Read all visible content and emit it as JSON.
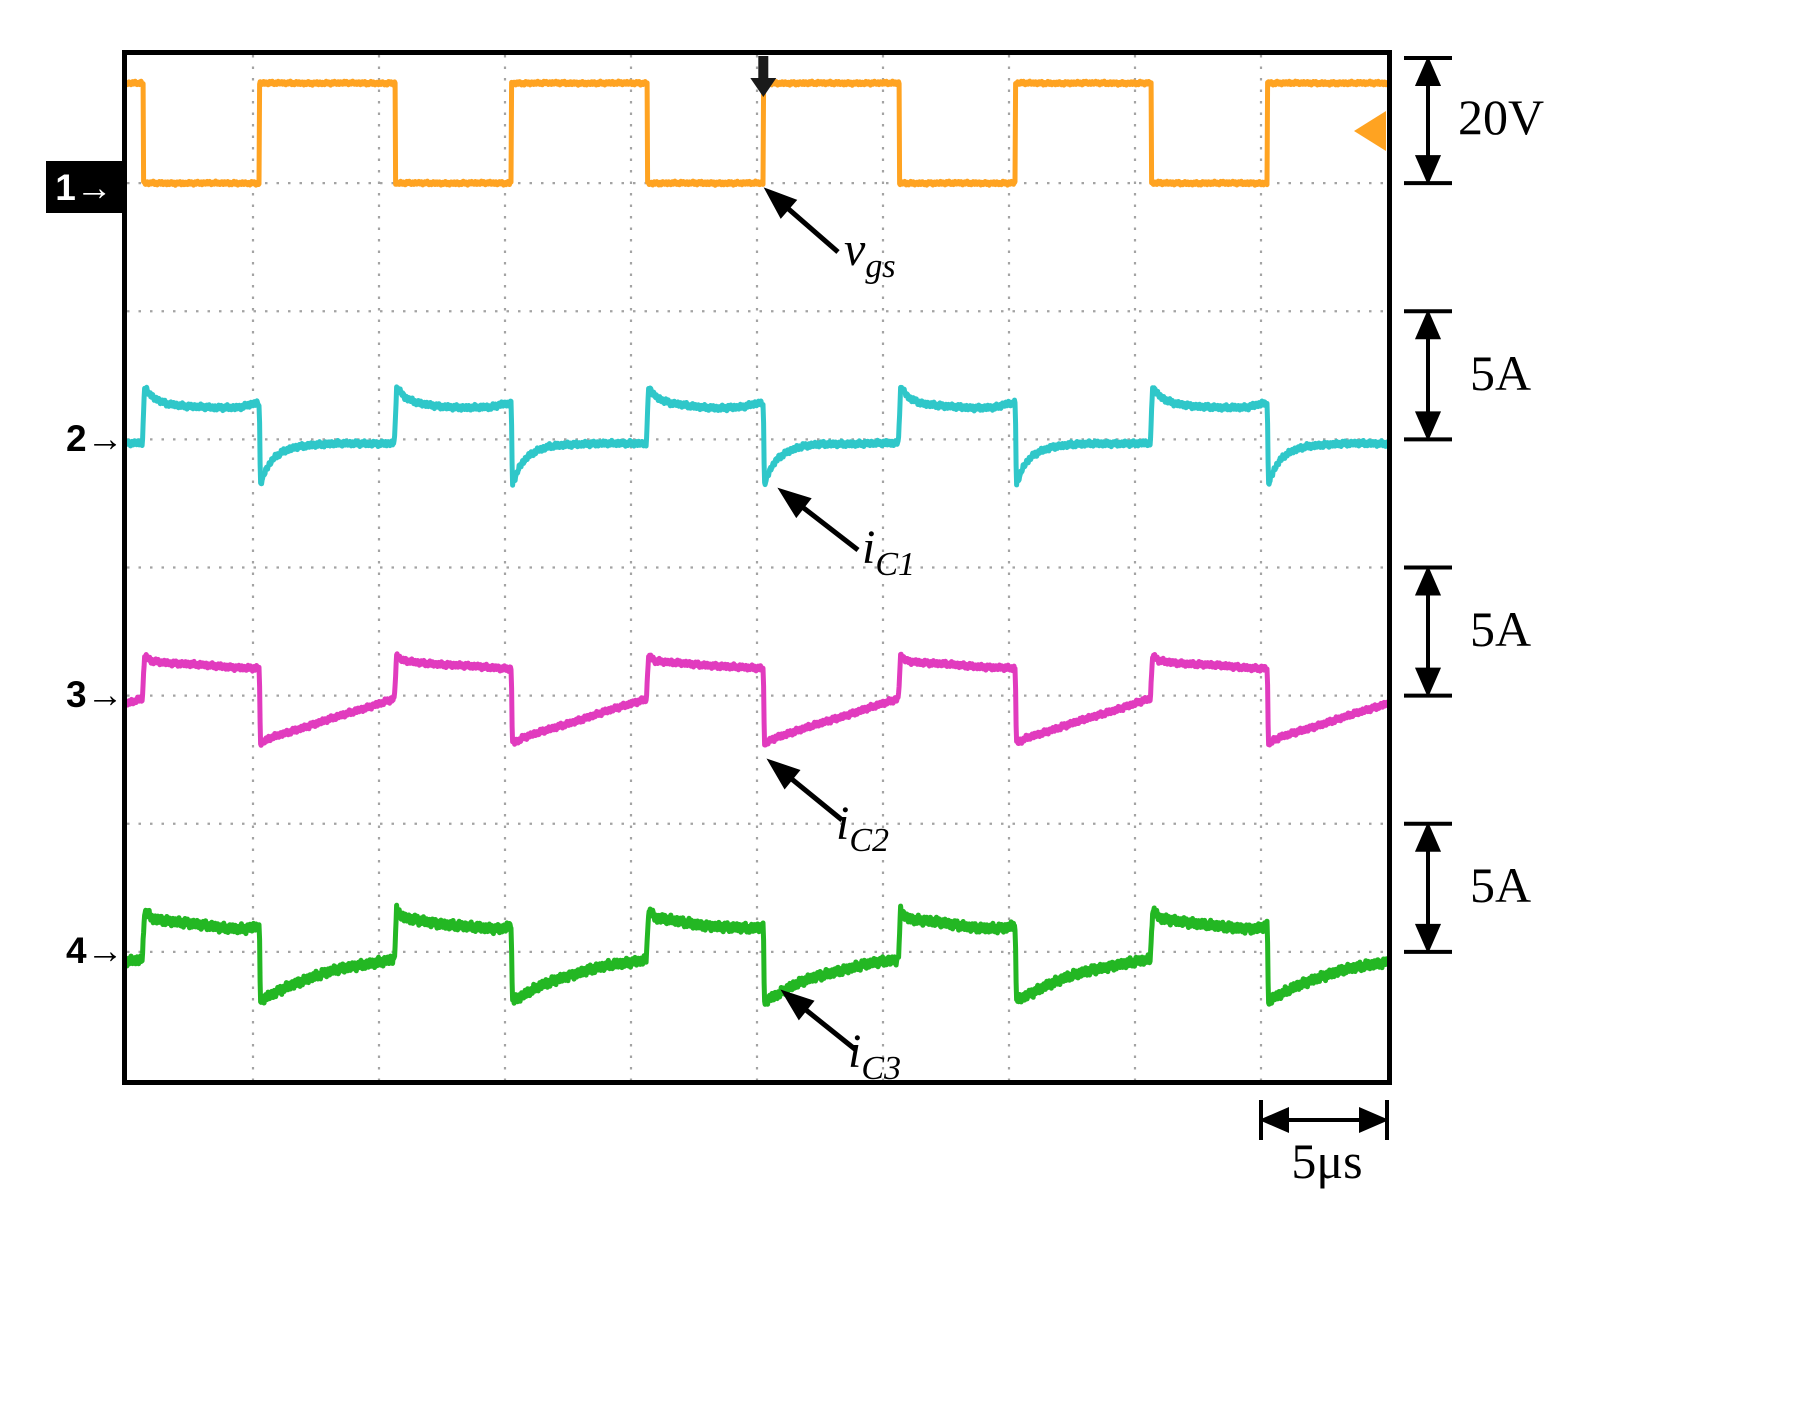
{
  "figure": {
    "channel_markers": [
      {
        "id": 1,
        "text": "1→"
      },
      {
        "id": 2,
        "text": "2→"
      },
      {
        "id": 3,
        "text": "3→"
      },
      {
        "id": 4,
        "text": "4→"
      }
    ],
    "scale_indicators": [
      {
        "label": "20V"
      },
      {
        "label": "5A"
      },
      {
        "label": "5A"
      },
      {
        "label": "5A"
      }
    ],
    "time_scale": {
      "label": "5μs"
    },
    "annotations": [
      {
        "base": "v",
        "sub": "gs"
      },
      {
        "base": "i",
        "sub": "C1"
      },
      {
        "base": "i",
        "sub": "C2"
      },
      {
        "base": "i",
        "sub": "C3"
      }
    ]
  },
  "chart_data": {
    "type": "line",
    "title": "",
    "x_axis": {
      "unit": "μs",
      "time_per_div": 5,
      "divisions": 10,
      "range": [
        0,
        50
      ]
    },
    "y_axis": {
      "divisions": 8
    },
    "grid": true,
    "switching_period_us": 10,
    "gate_rising_edge_phase_us": 5.25,
    "gate_duty_high": 0.54,
    "trigger_time_us": 25.25,
    "series": [
      {
        "name": "v_gs",
        "channel": 1,
        "color": "#FFA321",
        "per_arrow_scale": "20V",
        "unit": "V",
        "high": 20,
        "low": 0,
        "period_points": [
          [
            0,
            0
          ],
          [
            0,
            20
          ],
          [
            5.4,
            20
          ],
          [
            5.4,
            0
          ],
          [
            10,
            0
          ]
        ]
      },
      {
        "name": "i_C1",
        "channel": 2,
        "color": "#2FC7C9",
        "per_arrow_scale": "5A",
        "unit": "A",
        "period_points": [
          [
            0,
            1.4
          ],
          [
            0.04,
            -1.75
          ],
          [
            0.3,
            -1.1
          ],
          [
            0.6,
            -0.7
          ],
          [
            1.0,
            -0.45
          ],
          [
            1.5,
            -0.28
          ],
          [
            2.2,
            -0.2
          ],
          [
            3.0,
            -0.17
          ],
          [
            5.36,
            -0.15
          ],
          [
            5.45,
            2.0
          ],
          [
            5.8,
            1.6
          ],
          [
            6.3,
            1.4
          ],
          [
            7.2,
            1.28
          ],
          [
            8.2,
            1.22
          ],
          [
            9.2,
            1.25
          ],
          [
            9.7,
            1.38
          ],
          [
            10,
            1.4
          ]
        ]
      },
      {
        "name": "i_C2",
        "channel": 3,
        "color": "#E13BBE",
        "per_arrow_scale": "5A",
        "unit": "A",
        "period_points": [
          [
            0,
            1.05
          ],
          [
            0.04,
            -1.85
          ],
          [
            0.5,
            -1.62
          ],
          [
            5.36,
            -0.12
          ],
          [
            5.45,
            1.55
          ],
          [
            5.7,
            1.35
          ],
          [
            6.3,
            1.28
          ],
          [
            7.5,
            1.2
          ],
          [
            9.0,
            1.1
          ],
          [
            10,
            1.05
          ]
        ]
      },
      {
        "name": "i_C3",
        "channel": 4,
        "color": "#23B723",
        "per_arrow_scale": "5A",
        "unit": "A",
        "period_points": [
          [
            0,
            1.0
          ],
          [
            0.04,
            -1.9
          ],
          [
            0.4,
            -1.72
          ],
          [
            1.2,
            -1.3
          ],
          [
            2.0,
            -1.0
          ],
          [
            3.0,
            -0.72
          ],
          [
            4.0,
            -0.5
          ],
          [
            5.0,
            -0.35
          ],
          [
            5.36,
            -0.3
          ],
          [
            5.45,
            1.6
          ],
          [
            5.75,
            1.3
          ],
          [
            6.5,
            1.2
          ],
          [
            7.5,
            1.05
          ],
          [
            8.5,
            0.95
          ],
          [
            9.5,
            0.9
          ],
          [
            10,
            1.0
          ]
        ]
      }
    ]
  }
}
